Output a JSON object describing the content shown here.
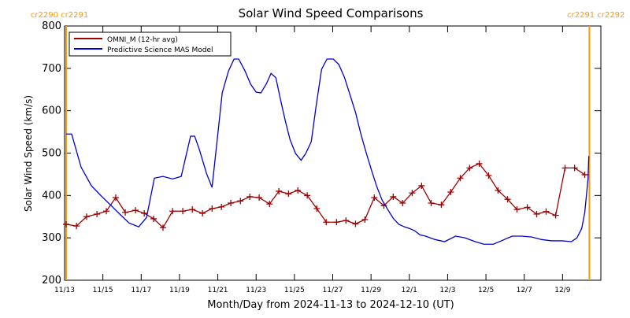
{
  "chart_data": {
    "type": "line",
    "title": "Solar Wind Speed Comparisons",
    "xlabel": "Month/Day from 2024-11-13 to 2024-12-10 (UT)",
    "ylabel": "Solar Wind Speed (km/s)",
    "xlim": [
      0,
      28
    ],
    "ylim": [
      200,
      800
    ],
    "xticks": [
      {
        "value": 0,
        "label": "11/13"
      },
      {
        "value": 2,
        "label": "11/15"
      },
      {
        "value": 4,
        "label": "11/17"
      },
      {
        "value": 6,
        "label": "11/19"
      },
      {
        "value": 8,
        "label": "11/21"
      },
      {
        "value": 10,
        "label": "11/23"
      },
      {
        "value": 12,
        "label": "11/25"
      },
      {
        "value": 14,
        "label": "11/27"
      },
      {
        "value": 16,
        "label": "11/29"
      },
      {
        "value": 18,
        "label": "12/1"
      },
      {
        "value": 20,
        "label": "12/3"
      },
      {
        "value": 22,
        "label": "12/5"
      },
      {
        "value": 24,
        "label": "12/7"
      },
      {
        "value": 26,
        "label": "12/9"
      }
    ],
    "yticks": [
      200,
      300,
      400,
      500,
      600,
      700,
      800
    ],
    "annotations": [
      {
        "text": "cr2290 cr2291",
        "x": 0.08,
        "color": "#ff9900"
      },
      {
        "text": "cr2291 cr2292",
        "x": 27.4,
        "color": "#ff9900"
      }
    ],
    "series": [
      {
        "name": "OMNI_M (12-hr avg)",
        "color": "#a00000",
        "markers": true,
        "x": [
          0.08,
          0.62,
          1.15,
          1.69,
          2.18,
          2.67,
          3.17,
          3.7,
          4.16,
          4.65,
          5.14,
          5.64,
          6.17,
          6.67,
          7.2,
          7.7,
          8.19,
          8.68,
          9.18,
          9.67,
          10.16,
          10.7,
          11.19,
          11.69,
          12.18,
          12.67,
          13.17,
          13.66,
          14.2,
          14.69,
          15.19,
          15.68,
          16.17,
          16.67,
          17.16,
          17.65,
          18.15,
          18.64,
          19.14,
          19.67,
          20.16,
          20.66,
          21.15,
          21.65,
          22.14,
          22.63,
          23.13,
          23.62,
          24.16,
          24.65,
          25.14,
          25.64,
          26.13,
          26.63,
          27.16
        ],
        "values": [
          332,
          328,
          350,
          356,
          363,
          395,
          360,
          365,
          358,
          345,
          324,
          363,
          363,
          367,
          358,
          369,
          373,
          382,
          387,
          397,
          395,
          380,
          410,
          404,
          412,
          400,
          369,
          337,
          337,
          341,
          333,
          343,
          395,
          376,
          397,
          382,
          406,
          423,
          382,
          378,
          408,
          441,
          465,
          475,
          447,
          412,
          391,
          367,
          372,
          356,
          362,
          353,
          465,
          465,
          449
        ]
      },
      {
        "name": "Predictive Science MAS Model",
        "color": "#0000cc",
        "markers": false,
        "x": [
          0.08,
          0.37,
          0.86,
          1.4,
          1.89,
          2.39,
          2.88,
          3.37,
          3.87,
          4.28,
          4.69,
          5.14,
          5.64,
          6.09,
          6.58,
          6.79,
          7.04,
          7.41,
          7.7,
          7.98,
          8.23,
          8.56,
          8.85,
          9.09,
          9.42,
          9.71,
          10.0,
          10.25,
          10.53,
          10.78,
          11.03,
          11.28,
          11.52,
          11.77,
          12.06,
          12.35,
          12.59,
          12.88,
          13.13,
          13.42,
          13.7,
          14.03,
          14.32,
          14.61,
          14.9,
          15.19,
          15.47,
          15.76,
          16.05,
          16.3,
          16.58,
          16.87,
          17.16,
          17.45,
          17.74,
          18.02,
          18.27,
          18.56,
          18.85,
          19.34,
          19.84,
          20.41,
          20.9,
          21.44,
          21.89,
          22.39,
          22.8,
          23.37,
          23.87,
          24.4,
          24.9,
          25.43,
          25.97,
          26.46,
          26.75,
          27.0,
          27.16,
          27.33,
          27.37
        ],
        "values": [
          545,
          545,
          467,
          423,
          400,
          378,
          356,
          335,
          326,
          348,
          441,
          445,
          439,
          445,
          540,
          540,
          508,
          452,
          419,
          536,
          642,
          694,
          722,
          722,
          694,
          663,
          644,
          642,
          663,
          688,
          678,
          625,
          577,
          532,
          499,
          483,
          499,
          527,
          610,
          698,
          722,
          722,
          709,
          679,
          638,
          596,
          545,
          499,
          456,
          421,
          389,
          367,
          346,
          332,
          326,
          322,
          317,
          307,
          304,
          296,
          291,
          304,
          300,
          291,
          285,
          285,
          293,
          304,
          304,
          302,
          296,
          293,
          293,
          291,
          300,
          322,
          360,
          439,
          493
        ]
      }
    ]
  }
}
